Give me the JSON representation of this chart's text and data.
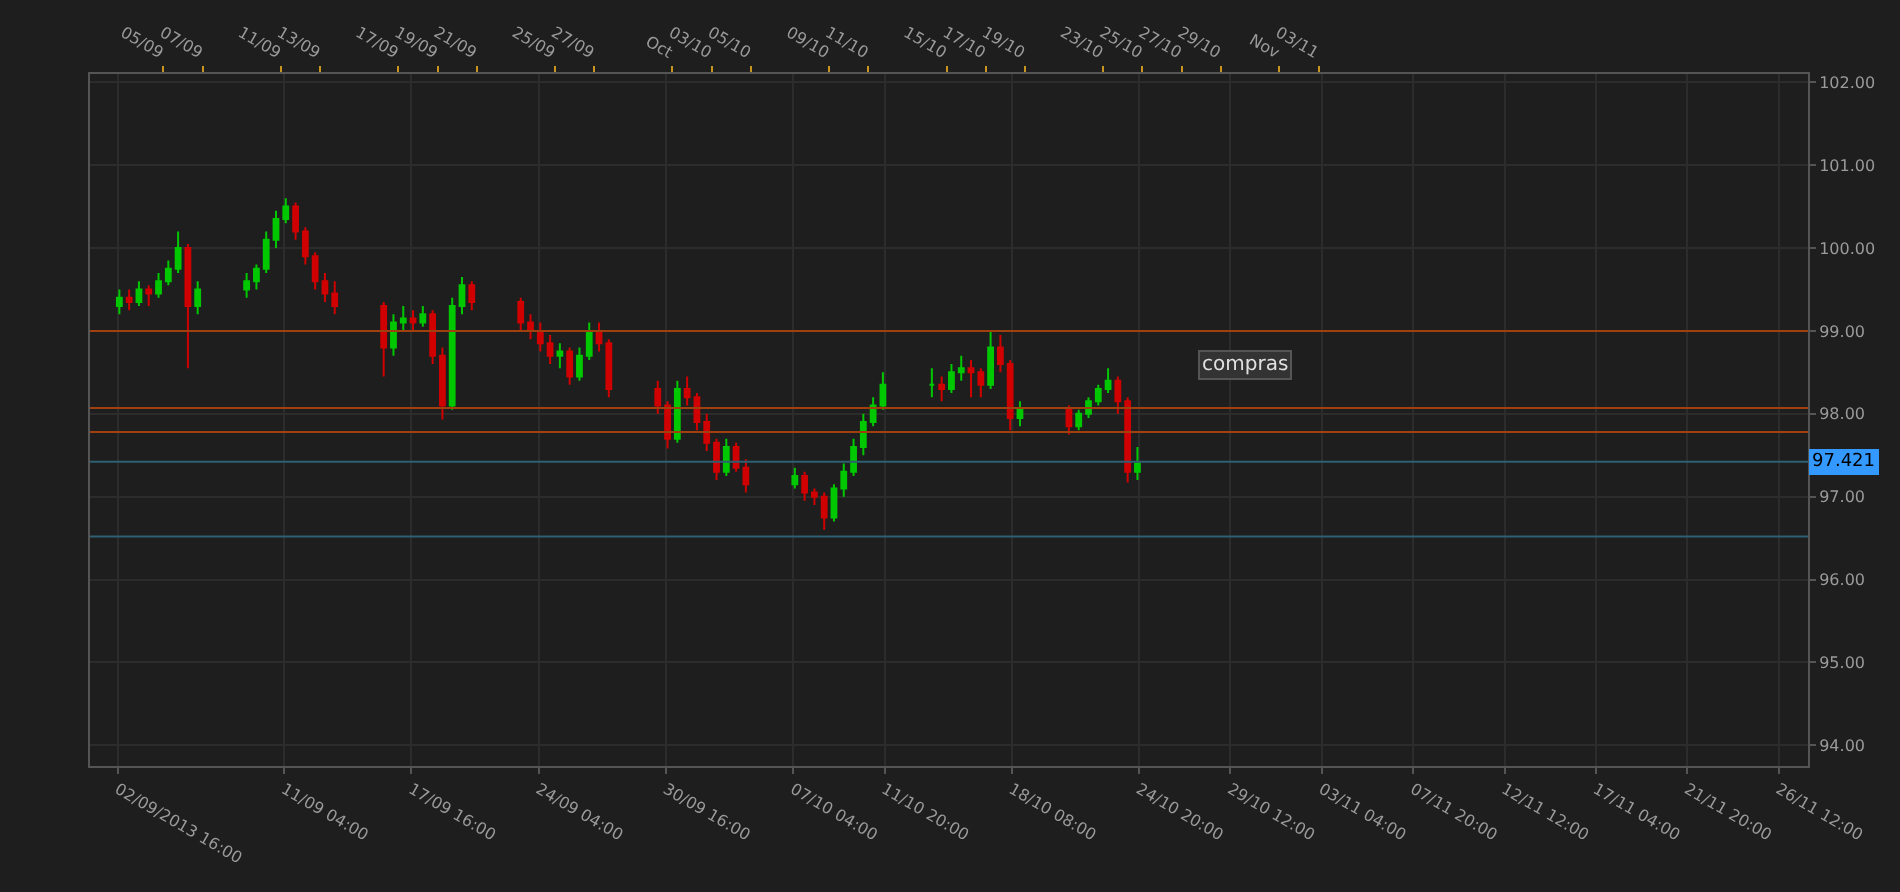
{
  "chart_data": {
    "type": "candlestick",
    "annotations": [
      "compras"
    ],
    "x": [
      "2013-09-02T18:00",
      "2013-09-03T06:00",
      "2013-09-03T18:00",
      "2013-09-04T06:00",
      "2013-09-04T18:00",
      "2013-09-05T06:00",
      "2013-09-05T18:00",
      "2013-09-06T06:00",
      "2013-09-06T18:00",
      "2013-09-09T06:00",
      "2013-09-09T18:00",
      "2013-09-10T06:00",
      "2013-09-10T18:00",
      "2013-09-11T06:00",
      "2013-09-11T18:00",
      "2013-09-12T06:00",
      "2013-09-12T18:00",
      "2013-09-13T06:00",
      "2013-09-13T18:00",
      "2013-09-16T06:00",
      "2013-09-16T18:00",
      "2013-09-17T06:00",
      "2013-09-17T18:00",
      "2013-09-18T06:00",
      "2013-09-18T18:00",
      "2013-09-19T06:00",
      "2013-09-19T18:00",
      "2013-09-20T06:00",
      "2013-09-20T18:00",
      "2013-09-23T06:00",
      "2013-09-23T18:00",
      "2013-09-24T06:00",
      "2013-09-24T18:00",
      "2013-09-25T06:00",
      "2013-09-25T18:00",
      "2013-09-26T06:00",
      "2013-09-26T18:00",
      "2013-09-27T06:00",
      "2013-09-27T18:00",
      "2013-09-30T06:00",
      "2013-09-30T18:00",
      "2013-10-01T06:00",
      "2013-10-01T18:00",
      "2013-10-02T06:00",
      "2013-10-02T18:00",
      "2013-10-03T06:00",
      "2013-10-03T18:00",
      "2013-10-04T06:00",
      "2013-10-04T18:00",
      "2013-10-07T06:00",
      "2013-10-07T18:00",
      "2013-10-08T06:00",
      "2013-10-08T18:00",
      "2013-10-09T06:00",
      "2013-10-09T18:00",
      "2013-10-10T06:00",
      "2013-10-10T18:00",
      "2013-10-11T06:00",
      "2013-10-11T18:00",
      "2013-10-14T06:00",
      "2013-10-14T18:00",
      "2013-10-15T06:00",
      "2013-10-15T18:00",
      "2013-10-16T06:00",
      "2013-10-16T18:00",
      "2013-10-17T06:00",
      "2013-10-17T18:00",
      "2013-10-18T06:00",
      "2013-10-18T18:00",
      "2013-10-21T06:00",
      "2013-10-21T18:00",
      "2013-10-22T06:00",
      "2013-10-22T18:00",
      "2013-10-23T06:00",
      "2013-10-23T18:00",
      "2013-10-24T06:00",
      "2013-10-24T18:00"
    ],
    "ohlc": [
      [
        99.3,
        99.5,
        99.2,
        99.4
      ],
      [
        99.4,
        99.5,
        99.25,
        99.35
      ],
      [
        99.35,
        99.6,
        99.3,
        99.5
      ],
      [
        99.5,
        99.55,
        99.3,
        99.45
      ],
      [
        99.45,
        99.7,
        99.4,
        99.6
      ],
      [
        99.6,
        99.85,
        99.55,
        99.75
      ],
      [
        99.75,
        100.2,
        99.7,
        100.0
      ],
      [
        100.0,
        100.05,
        98.55,
        99.3
      ],
      [
        99.3,
        99.6,
        99.2,
        99.5
      ],
      [
        99.5,
        99.7,
        99.4,
        99.6
      ],
      [
        99.6,
        99.8,
        99.5,
        99.75
      ],
      [
        99.75,
        100.2,
        99.7,
        100.1
      ],
      [
        100.1,
        100.45,
        100.0,
        100.35
      ],
      [
        100.35,
        100.6,
        100.3,
        100.5
      ],
      [
        100.5,
        100.55,
        100.1,
        100.2
      ],
      [
        100.2,
        100.25,
        99.8,
        99.9
      ],
      [
        99.9,
        99.95,
        99.5,
        99.6
      ],
      [
        99.6,
        99.7,
        99.35,
        99.45
      ],
      [
        99.45,
        99.6,
        99.2,
        99.3
      ],
      [
        99.3,
        99.35,
        98.45,
        98.8
      ],
      [
        98.8,
        99.2,
        98.7,
        99.1
      ],
      [
        99.1,
        99.3,
        99.0,
        99.15
      ],
      [
        99.15,
        99.25,
        99.0,
        99.1
      ],
      [
        99.1,
        99.3,
        99.05,
        99.2
      ],
      [
        99.2,
        99.25,
        98.6,
        98.7
      ],
      [
        98.7,
        98.8,
        97.93,
        98.1
      ],
      [
        98.1,
        99.4,
        98.05,
        99.3
      ],
      [
        99.3,
        99.65,
        99.2,
        99.55
      ],
      [
        99.55,
        99.6,
        99.25,
        99.35
      ],
      [
        99.35,
        99.4,
        99.0,
        99.1
      ],
      [
        99.1,
        99.2,
        98.9,
        99.0
      ],
      [
        99.0,
        99.1,
        98.75,
        98.85
      ],
      [
        98.85,
        98.95,
        98.6,
        98.7
      ],
      [
        98.7,
        98.85,
        98.55,
        98.75
      ],
      [
        98.75,
        98.8,
        98.35,
        98.45
      ],
      [
        98.45,
        98.8,
        98.4,
        98.7
      ],
      [
        98.7,
        99.1,
        98.65,
        99.0
      ],
      [
        99.0,
        99.1,
        98.75,
        98.85
      ],
      [
        98.85,
        98.9,
        98.2,
        98.3
      ],
      [
        98.3,
        98.4,
        98.0,
        98.1
      ],
      [
        98.1,
        98.15,
        97.58,
        97.7
      ],
      [
        97.7,
        98.4,
        97.65,
        98.3
      ],
      [
        98.3,
        98.45,
        98.1,
        98.2
      ],
      [
        98.2,
        98.25,
        97.8,
        97.9
      ],
      [
        97.9,
        98.0,
        97.55,
        97.65
      ],
      [
        97.65,
        97.7,
        97.2,
        97.3
      ],
      [
        97.3,
        97.7,
        97.25,
        97.6
      ],
      [
        97.6,
        97.65,
        97.3,
        97.35
      ],
      [
        97.35,
        97.45,
        97.05,
        97.15
      ],
      [
        97.15,
        97.35,
        97.1,
        97.25
      ],
      [
        97.25,
        97.3,
        96.95,
        97.05
      ],
      [
        97.05,
        97.1,
        96.9,
        97.0
      ],
      [
        97.0,
        97.05,
        96.6,
        96.75
      ],
      [
        96.75,
        97.15,
        96.7,
        97.1
      ],
      [
        97.1,
        97.4,
        97.0,
        97.3
      ],
      [
        97.3,
        97.7,
        97.25,
        97.6
      ],
      [
        97.6,
        98.0,
        97.5,
        97.9
      ],
      [
        97.9,
        98.2,
        97.85,
        98.1
      ],
      [
        98.1,
        98.5,
        98.05,
        98.35
      ],
      [
        98.35,
        98.55,
        98.2,
        98.35
      ],
      [
        98.35,
        98.45,
        98.15,
        98.3
      ],
      [
        98.3,
        98.6,
        98.25,
        98.5
      ],
      [
        98.5,
        98.7,
        98.4,
        98.55
      ],
      [
        98.55,
        98.65,
        98.2,
        98.5
      ],
      [
        98.5,
        98.55,
        98.2,
        98.35
      ],
      [
        98.35,
        99.0,
        98.3,
        98.8
      ],
      [
        98.8,
        98.95,
        98.5,
        98.6
      ],
      [
        98.6,
        98.65,
        97.8,
        97.95
      ],
      [
        97.95,
        98.15,
        97.85,
        98.05
      ],
      [
        98.05,
        98.1,
        97.75,
        97.85
      ],
      [
        97.85,
        98.05,
        97.8,
        98.0
      ],
      [
        98.0,
        98.2,
        97.95,
        98.15
      ],
      [
        98.15,
        98.35,
        98.1,
        98.3
      ],
      [
        98.3,
        98.55,
        98.25,
        98.4
      ],
      [
        98.4,
        98.45,
        98.0,
        98.15
      ],
      [
        98.15,
        98.2,
        97.17,
        97.3
      ],
      [
        97.3,
        97.6,
        97.2,
        97.4
      ]
    ],
    "xlim": [
      "2013-09-01T06:00",
      "2013-11-28T00:00"
    ],
    "xticks": [
      {
        "value": "2013-09-02T16:00",
        "label": "02/09/2013 16:00"
      },
      {
        "value": "2013-09-11T04:00",
        "label": "11/09 04:00"
      },
      {
        "value": "2013-09-17T16:00",
        "label": "17/09 16:00"
      },
      {
        "value": "2013-09-24T04:00",
        "label": "24/09 04:00"
      },
      {
        "value": "2013-09-30T16:00",
        "label": "30/09 16:00"
      },
      {
        "value": "2013-10-07T04:00",
        "label": "07/10 04:00"
      },
      {
        "value": "2013-10-11T20:00",
        "label": "11/10 20:00"
      },
      {
        "value": "2013-10-18T08:00",
        "label": "18/10 08:00"
      },
      {
        "value": "2013-10-24T20:00",
        "label": "24/10 20:00"
      },
      {
        "value": "2013-10-29T12:00",
        "label": "29/10 12:00"
      },
      {
        "value": "2013-11-03T04:00",
        "label": "03/11 04:00"
      },
      {
        "value": "2013-11-07T20:00",
        "label": "07/11 20:00"
      },
      {
        "value": "2013-11-12T12:00",
        "label": "12/11 12:00"
      },
      {
        "value": "2013-11-17T04:00",
        "label": "17/11 04:00"
      },
      {
        "value": "2013-11-21T20:00",
        "label": "21/11 20:00"
      },
      {
        "value": "2013-11-26T12:00",
        "label": "26/11 12:00"
      }
    ],
    "x2lim": [
      "2013-09-01T06:00",
      "2013-11-28T00:00"
    ],
    "x2ticks": [
      {
        "value": "2013-09-05",
        "label": "05/09"
      },
      {
        "value": "2013-09-07",
        "label": "07/09"
      },
      {
        "value": "2013-09-11",
        "label": "11/09"
      },
      {
        "value": "2013-09-13",
        "label": "13/09"
      },
      {
        "value": "2013-09-17",
        "label": "17/09"
      },
      {
        "value": "2013-09-19",
        "label": "19/09"
      },
      {
        "value": "2013-09-21",
        "label": "21/09"
      },
      {
        "value": "2013-09-25",
        "label": "25/09"
      },
      {
        "value": "2013-09-27",
        "label": "27/09"
      },
      {
        "value": "2013-10-01",
        "label": "Oct"
      },
      {
        "value": "2013-10-03",
        "label": "03/10"
      },
      {
        "value": "2013-10-05",
        "label": "05/10"
      },
      {
        "value": "2013-10-09",
        "label": "09/10"
      },
      {
        "value": "2013-10-11",
        "label": "11/10"
      },
      {
        "value": "2013-10-15",
        "label": "15/10"
      },
      {
        "value": "2013-10-17",
        "label": "17/10"
      },
      {
        "value": "2013-10-19",
        "label": "19/10"
      },
      {
        "value": "2013-10-23",
        "label": "23/10"
      },
      {
        "value": "2013-10-25",
        "label": "25/10"
      },
      {
        "value": "2013-10-27",
        "label": "27/10"
      },
      {
        "value": "2013-10-29",
        "label": "29/10"
      },
      {
        "value": "2013-11-01",
        "label": "Nov"
      },
      {
        "value": "2013-11-03",
        "label": "03/11"
      }
    ],
    "ylim": [
      93.75,
      102.1
    ],
    "yticks": [
      {
        "value": 94,
        "label": "94.00"
      },
      {
        "value": 95,
        "label": "95.00"
      },
      {
        "value": 96,
        "label": "96.00"
      },
      {
        "value": 97,
        "label": "97.00"
      },
      {
        "value": 98,
        "label": "98.00"
      },
      {
        "value": 99,
        "label": "99.00"
      },
      {
        "value": 100,
        "label": "100.00"
      },
      {
        "value": 101,
        "label": "101.00"
      },
      {
        "value": 102,
        "label": "102.00"
      }
    ],
    "ref_lines": [
      {
        "axis": "y",
        "value": 99.0,
        "label": null,
        "color": "#a0400f"
      },
      {
        "axis": "y",
        "value": 98.07,
        "label": null,
        "color": "#a0400f"
      },
      {
        "axis": "y",
        "value": 97.78,
        "label": null,
        "color": "#a0400f"
      },
      {
        "axis": "y",
        "value": 97.421,
        "label": "97.421",
        "color": "#2e5f72"
      },
      {
        "axis": "y",
        "value": 96.52,
        "label": null,
        "color": "#2e5f72"
      }
    ],
    "grid": true
  }
}
